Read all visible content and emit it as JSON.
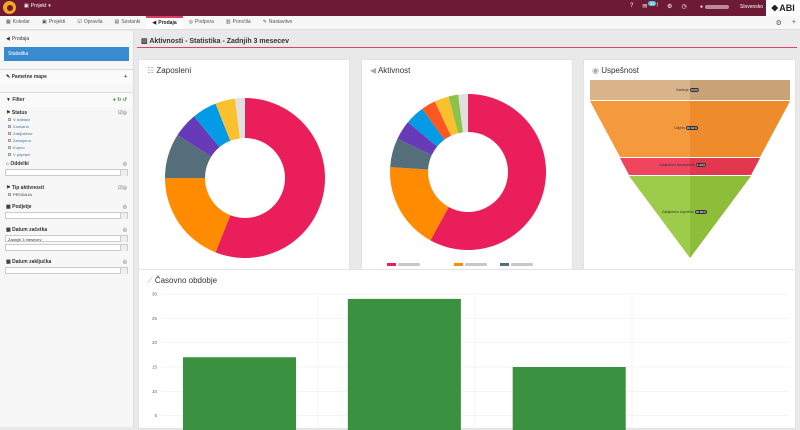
{
  "topbar": {
    "project_label": "Projekt",
    "badge_count": "35",
    "language": "Slovensko",
    "brand": "ABI"
  },
  "tabs": [
    {
      "label": "Koledar"
    },
    {
      "label": "Projekti"
    },
    {
      "label": "Opravila"
    },
    {
      "label": "Sestanki"
    },
    {
      "label": "Prodaja"
    },
    {
      "label": "Podpora"
    },
    {
      "label": "Poročila"
    },
    {
      "label": "Nastavitve"
    }
  ],
  "sidebar": {
    "crumb": "Prodaja",
    "active_item": "Statistika",
    "saved_maps": "Pametne mape",
    "filter": "Filter",
    "status_label": "Status",
    "status_options": [
      "V izdelavi",
      "Končano",
      "Zaključeno",
      "Zamujeno",
      "Kupno",
      "V pripravi"
    ],
    "department_label": "Oddelki",
    "activity_type_label": "Tip aktivnosti",
    "activity_type_value": "PRODAJA",
    "company_label": "Podjetje",
    "date_start_label": "Datum začetka",
    "date_start_value": "Zadnjih 3 mesecev",
    "date_end_label": "Datum zaključka"
  },
  "page_title": "Aktivnosti - Statistika - Zadnjih 3 mesecev",
  "cards": {
    "employees_title": "Zaposleni",
    "activity_title": "Aktivnost",
    "success_title": "Uspešnost",
    "period_title": "Časovno obdobje"
  },
  "colors": {
    "accent": "#6d1a36",
    "active_blue": "#3a8ad0",
    "bar_green": "#3a9140"
  },
  "chart_data": [
    {
      "type": "pie",
      "title": "Zaposleni",
      "slices": [
        {
          "value": 56,
          "color": "#e91e5a"
        },
        {
          "value": 19,
          "color": "#ff8c00"
        },
        {
          "value": 9,
          "color": "#546e7a"
        },
        {
          "value": 5,
          "color": "#673ab7"
        },
        {
          "value": 5,
          "color": "#039be5"
        },
        {
          "value": 4,
          "color": "#fbc02d"
        },
        {
          "value": 2,
          "color": "#e0e0e0"
        }
      ]
    },
    {
      "type": "pie",
      "title": "Aktivnost",
      "slices": [
        {
          "value": 58,
          "color": "#e91e5a"
        },
        {
          "value": 18,
          "color": "#ff8c00"
        },
        {
          "value": 6,
          "color": "#546e7a"
        },
        {
          "value": 4,
          "color": "#673ab7"
        },
        {
          "value": 4,
          "color": "#039be5"
        },
        {
          "value": 3,
          "color": "#ff5722"
        },
        {
          "value": 3,
          "color": "#fbc02d"
        },
        {
          "value": 2,
          "color": "#8bc34a"
        },
        {
          "value": 2,
          "color": "#e0e0e0"
        }
      ]
    },
    {
      "type": "bar",
      "title": "Časovno obdobje",
      "categories": [
        "",
        "",
        ""
      ],
      "values": [
        17,
        29,
        15
      ],
      "ylim": [
        0,
        30
      ],
      "yticks": [
        0,
        5,
        10,
        15,
        20,
        25,
        30
      ]
    }
  ],
  "funnel": [
    {
      "label": "Vsebuje",
      "pct": "100%"
    },
    {
      "label": "Odprto",
      "pct": "96.62%"
    },
    {
      "label": "Zaključeno Neuspešno",
      "pct": "2.40%"
    },
    {
      "label": "Zaključeno Uspešno",
      "pct": "95.86%"
    }
  ]
}
